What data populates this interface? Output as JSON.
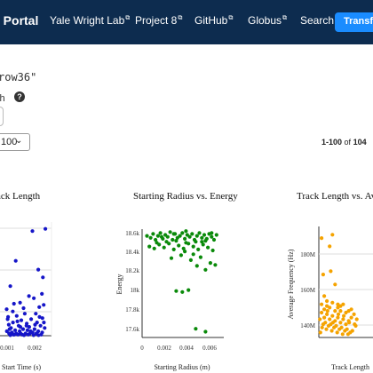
{
  "nav": {
    "brand": "a Portal",
    "links": [
      {
        "label": "Yale Wright Lab",
        "external": true
      },
      {
        "label": "Project 8",
        "external": true
      },
      {
        "label": "GitHub",
        "external": true
      },
      {
        "label": "Globus",
        "external": true
      },
      {
        "label": "Search",
        "external": false
      }
    ],
    "transfer_label": "Transfer"
  },
  "search": {
    "query_text": "row36\"",
    "option_label": "ch",
    "help_glyph": "?"
  },
  "results": {
    "per_page": "100",
    "range": "1-100",
    "of_word": "of",
    "total": "104"
  },
  "colors": {
    "navbar": "#0d2c4f",
    "transfer": "#1a8cff",
    "series1": "#1515c8",
    "series2": "#0a8a0a",
    "series3": "#f5a300"
  },
  "chart_data": [
    {
      "type": "scatter",
      "title": "ack Length",
      "xlabel": "k Start Time (s)",
      "ylabel": "",
      "x_ticks": [
        "0.001",
        "0.002"
      ],
      "xlim": [
        0.0003,
        0.0024
      ],
      "ylim": [
        0,
        1
      ],
      "series": [
        {
          "color": "#1515c8",
          "points": [
            [
              0.00215,
              0.97
            ],
            [
              0.00162,
              0.95
            ],
            [
              0.00094,
              0.68
            ],
            [
              0.00186,
              0.6
            ],
            [
              0.00205,
              0.53
            ],
            [
              0.00072,
              0.45
            ],
            [
              0.00201,
              0.38
            ],
            [
              0.00148,
              0.36
            ],
            [
              0.00168,
              0.34
            ],
            [
              0.00112,
              0.3
            ],
            [
              0.00208,
              0.28
            ],
            [
              0.00057,
              0.24
            ],
            [
              0.00082,
              0.22
            ],
            [
              0.00131,
              0.2
            ],
            [
              0.00176,
              0.2
            ],
            [
              0.00098,
              0.18
            ],
            [
              0.00191,
              0.17
            ],
            [
              0.00061,
              0.15
            ],
            [
              0.00117,
              0.14
            ],
            [
              0.00157,
              0.15
            ],
            [
              0.00203,
              0.16
            ],
            [
              0.00083,
              0.12
            ],
            [
              0.00139,
              0.11
            ],
            [
              0.00181,
              0.12
            ],
            [
              0.00066,
              0.1
            ],
            [
              0.00106,
              0.09
            ],
            [
              0.00149,
              0.08
            ],
            [
              0.00195,
              0.09
            ],
            [
              0.00075,
              0.07
            ],
            [
              0.00124,
              0.06
            ],
            [
              0.00171,
              0.06
            ],
            [
              0.00212,
              0.07
            ],
            [
              0.00092,
              0.05
            ],
            [
              0.00142,
              0.05
            ],
            [
              0.00186,
              0.04
            ],
            [
              0.00058,
              0.04
            ],
            [
              0.0011,
              0.04
            ],
            [
              0.00163,
              0.03
            ],
            [
              0.00079,
              0.03
            ],
            [
              0.00202,
              0.03
            ],
            [
              0.00134,
              0.02
            ],
            [
              0.00096,
              0.02
            ],
            [
              0.00152,
              0.02
            ],
            [
              0.00067,
              0.02
            ],
            [
              0.00178,
              0.02
            ],
            [
              0.0012,
              0.01
            ],
            [
              0.00088,
              0.01
            ],
            [
              0.00198,
              0.01
            ],
            [
              0.00145,
              0.01
            ],
            [
              0.00103,
              0.01
            ],
            [
              0.00072,
              0.005
            ],
            [
              0.00167,
              0.005
            ],
            [
              0.00128,
              0.005
            ],
            [
              0.00187,
              0.005
            ],
            [
              0.00085,
              0.01
            ],
            [
              0.00114,
              0.02
            ],
            [
              0.00155,
              0.04
            ],
            [
              0.00069,
              0.06
            ],
            [
              0.00138,
              0.09
            ],
            [
              0.00173,
              0.1
            ],
            [
              0.00209,
              0.12
            ],
            [
              0.00101,
              0.13
            ],
            [
              0.00063,
              0.17
            ],
            [
              0.00126,
              0.25
            ],
            [
              0.0019,
              0.26
            ],
            [
              0.00087,
              0.29
            ],
            [
              0.00158,
              0.03
            ],
            [
              0.00113,
              0.08
            ]
          ]
        }
      ]
    },
    {
      "type": "scatter",
      "title": "Starting Radius vs. Energy",
      "xlabel": "Starting Radius (m)",
      "ylabel": "Energy",
      "x_ticks": [
        "0",
        "0.002",
        "0.004",
        "0.006"
      ],
      "y_ticks": [
        "17.6k",
        "17.8k",
        "18k",
        "18.2k",
        "18.4k",
        "18.6k"
      ],
      "xlim": [
        0,
        0.0067
      ],
      "ylim": [
        17530,
        18650
      ],
      "series": [
        {
          "color": "#0a8a0a",
          "points": [
            [
              0.0004,
              18580
            ],
            [
              0.0007,
              18560
            ],
            [
              0.0009,
              18600
            ],
            [
              0.0011,
              18540
            ],
            [
              0.0013,
              18580
            ],
            [
              0.0015,
              18610
            ],
            [
              0.0017,
              18550
            ],
            [
              0.0019,
              18590
            ],
            [
              0.0021,
              18570
            ],
            [
              0.0023,
              18620
            ],
            [
              0.0025,
              18540
            ],
            [
              0.0027,
              18600
            ],
            [
              0.0029,
              18560
            ],
            [
              0.0031,
              18580
            ],
            [
              0.0033,
              18610
            ],
            [
              0.0035,
              18550
            ],
            [
              0.0037,
              18590
            ],
            [
              0.0039,
              18570
            ],
            [
              0.0041,
              18600
            ],
            [
              0.0043,
              18540
            ],
            [
              0.0045,
              18580
            ],
            [
              0.0047,
              18610
            ],
            [
              0.0049,
              18560
            ],
            [
              0.0051,
              18590
            ],
            [
              0.0053,
              18550
            ],
            [
              0.0055,
              18600
            ],
            [
              0.0057,
              18570
            ],
            [
              0.0059,
              18540
            ],
            [
              0.0061,
              18590
            ],
            [
              0.0006,
              18470
            ],
            [
              0.001,
              18450
            ],
            [
              0.0014,
              18490
            ],
            [
              0.0018,
              18460
            ],
            [
              0.0022,
              18500
            ],
            [
              0.0026,
              18440
            ],
            [
              0.003,
              18480
            ],
            [
              0.0034,
              18450
            ],
            [
              0.0038,
              18500
            ],
            [
              0.0042,
              18470
            ],
            [
              0.0046,
              18440
            ],
            [
              0.005,
              18490
            ],
            [
              0.0054,
              18460
            ],
            [
              0.0058,
              18430
            ],
            [
              0.002,
              18520
            ],
            [
              0.0028,
              18530
            ],
            [
              0.0036,
              18510
            ],
            [
              0.0044,
              18520
            ],
            [
              0.0052,
              18530
            ],
            [
              0.0012,
              18510
            ],
            [
              0.0024,
              18350
            ],
            [
              0.0032,
              18380
            ],
            [
              0.004,
              18330
            ],
            [
              0.0048,
              18360
            ],
            [
              0.0056,
              18300
            ],
            [
              0.0045,
              18270
            ],
            [
              0.0052,
              18230
            ],
            [
              0.006,
              18280
            ],
            [
              0.0042,
              18390
            ],
            [
              0.0035,
              18420
            ],
            [
              0.0028,
              18010
            ],
            [
              0.0033,
              18000
            ],
            [
              0.0038,
              18020
            ],
            [
              0.0044,
              17620
            ],
            [
              0.0052,
              17590
            ],
            [
              0.0016,
              18570
            ],
            [
              0.0049,
              18520
            ],
            [
              0.0057,
              18610
            ],
            [
              0.0026,
              18600
            ],
            [
              0.0036,
              18630
            ]
          ]
        }
      ]
    },
    {
      "type": "scatter",
      "title": "Track Length vs. Avg",
      "xlabel": "Track Length",
      "ylabel": "Average Frequency (Hz)",
      "y_ticks": [
        "140M",
        "160M",
        "180M"
      ],
      "ylim": [
        130,
        197
      ],
      "series": [
        {
          "color": "#f5a300",
          "points": [
            [
              0.05,
              190
            ],
            [
              0.2,
              185
            ],
            [
              0.25,
              192
            ],
            [
              0.1,
              155
            ],
            [
              0.3,
              162
            ],
            [
              0.22,
              170
            ],
            [
              0.08,
              168
            ],
            [
              0.35,
              150
            ],
            [
              0.15,
              152
            ],
            [
              0.4,
              146
            ],
            [
              0.05,
              145
            ],
            [
              0.1,
              142
            ],
            [
              0.15,
              144
            ],
            [
              0.2,
              141
            ],
            [
              0.25,
              143
            ],
            [
              0.3,
              140
            ],
            [
              0.35,
              142
            ],
            [
              0.4,
              139
            ],
            [
              0.45,
              141
            ],
            [
              0.5,
              138
            ],
            [
              0.55,
              140
            ],
            [
              0.6,
              142
            ],
            [
              0.08,
              138
            ],
            [
              0.12,
              139
            ],
            [
              0.18,
              137
            ],
            [
              0.22,
              138
            ],
            [
              0.28,
              136
            ],
            [
              0.32,
              137
            ],
            [
              0.38,
              135
            ],
            [
              0.42,
              136
            ],
            [
              0.48,
              134
            ],
            [
              0.52,
              135
            ],
            [
              0.58,
              133
            ],
            [
              0.62,
              134
            ],
            [
              0.06,
              136
            ],
            [
              0.14,
              135
            ],
            [
              0.24,
              134
            ],
            [
              0.34,
              133
            ],
            [
              0.44,
              132
            ],
            [
              0.54,
              132
            ],
            [
              0.1,
              147
            ],
            [
              0.2,
              148
            ],
            [
              0.3,
              146
            ],
            [
              0.4,
              149
            ],
            [
              0.5,
              145
            ],
            [
              0.6,
              147
            ],
            [
              0.05,
              150
            ],
            [
              0.15,
              149
            ],
            [
              0.25,
              151
            ],
            [
              0.35,
              148
            ],
            [
              0.45,
              150
            ],
            [
              0.55,
              146
            ],
            [
              0.65,
              144
            ],
            [
              0.7,
              141
            ],
            [
              0.02,
              141
            ],
            [
              0.68,
              137
            ],
            [
              0.03,
              133
            ],
            [
              0.16,
              146
            ],
            [
              0.26,
              139
            ],
            [
              0.36,
              144
            ],
            [
              0.46,
              143
            ],
            [
              0.56,
              139
            ],
            [
              0.66,
              138
            ]
          ]
        }
      ]
    }
  ]
}
